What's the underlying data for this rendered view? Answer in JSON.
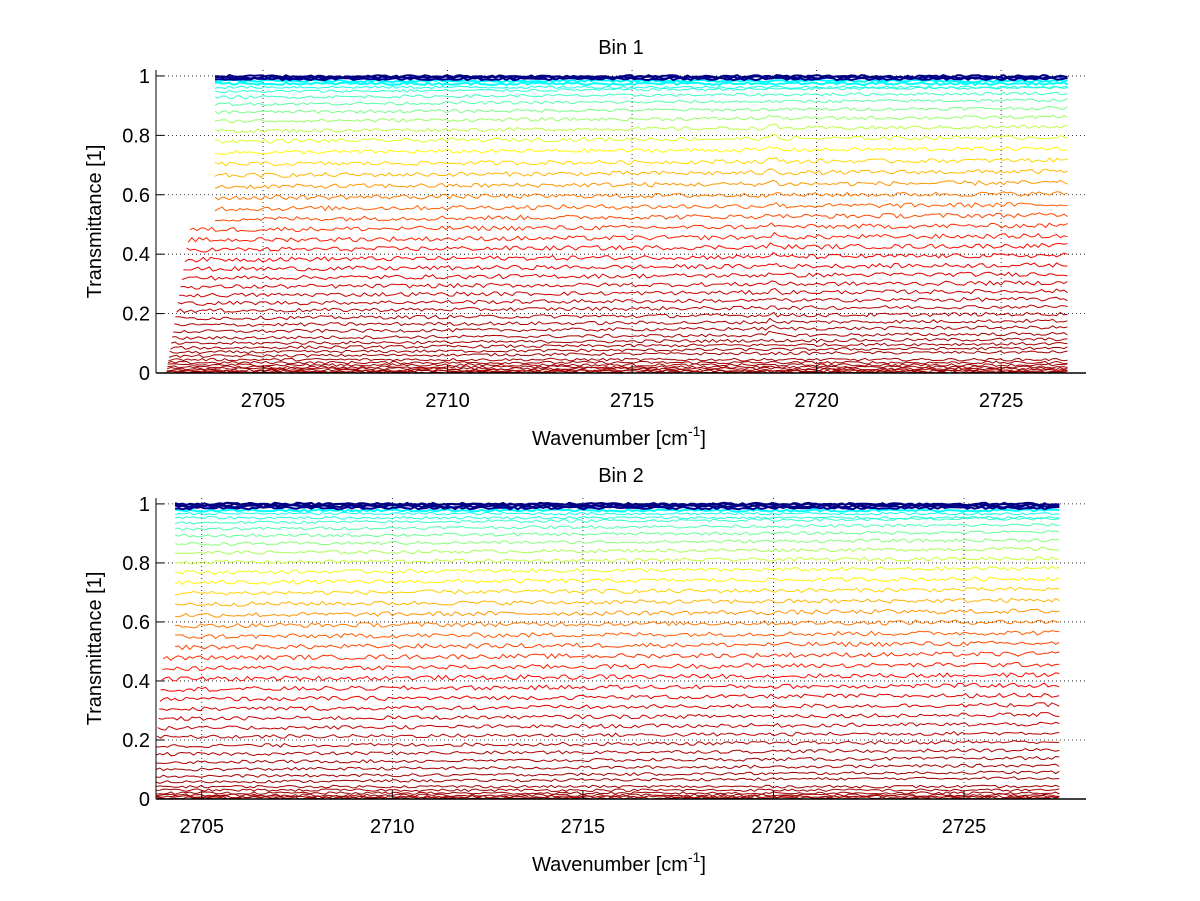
{
  "chart_data": [
    {
      "type": "line",
      "title": "Bin 1",
      "xlabel": "Wavenumber [cm",
      "xlabel_sup": "-1",
      "xlabel_end": "]",
      "ylabel": "Transmittance [1]",
      "xlim": [
        2702.1,
        2727.3
      ],
      "ylim": [
        0,
        1.02
      ],
      "xticks": [
        2705,
        2710,
        2715,
        2720,
        2725
      ],
      "xtick_labels": [
        "2705",
        "2710",
        "2715",
        "2720",
        "2725"
      ],
      "yticks": [
        0,
        0.2,
        0.4,
        0.6,
        0.8,
        1
      ],
      "ytick_labels": [
        "0",
        "0.2",
        "0.4",
        "0.6",
        "0.8",
        "1"
      ],
      "grid": true,
      "x_range": [
        2703.7,
        2726.8
      ],
      "colormap": "jet",
      "series_levels": [
        0.0,
        0.003,
        0.006,
        0.01,
        0.015,
        0.02,
        0.027,
        0.035,
        0.045,
        0.057,
        0.07,
        0.085,
        0.1,
        0.118,
        0.14,
        0.162,
        0.185,
        0.21,
        0.235,
        0.262,
        0.29,
        0.32,
        0.35,
        0.382,
        0.415,
        0.448,
        0.483,
        0.518,
        0.553,
        0.59,
        0.627,
        0.665,
        0.703,
        0.742,
        0.78,
        0.815,
        0.848,
        0.878,
        0.905,
        0.928,
        0.947,
        0.962,
        0.974,
        0.983,
        0.99,
        0.995,
        0.999
      ]
    },
    {
      "type": "line",
      "title": "Bin 2",
      "xlabel": "Wavenumber [cm",
      "xlabel_sup": "-1",
      "xlabel_end": "]",
      "ylabel": "Transmittance [1]",
      "xlim": [
        2703.8,
        2728.2
      ],
      "ylim": [
        0,
        1.02
      ],
      "xticks": [
        2705,
        2710,
        2715,
        2720,
        2725
      ],
      "xtick_labels": [
        "2705",
        "2710",
        "2715",
        "2720",
        "2725"
      ],
      "yticks": [
        0,
        0.2,
        0.4,
        0.6,
        0.8,
        1
      ],
      "ytick_labels": [
        "0",
        "0.2",
        "0.4",
        "0.6",
        "0.8",
        "1"
      ],
      "grid": true,
      "x_range": [
        2704.3,
        2727.5
      ],
      "colormap": "jet",
      "series_levels": [
        0.0,
        0.004,
        0.008,
        0.013,
        0.02,
        0.03,
        0.042,
        0.058,
        0.077,
        0.1,
        0.125,
        0.152,
        0.18,
        0.21,
        0.24,
        0.272,
        0.305,
        0.338,
        0.372,
        0.407,
        0.442,
        0.478,
        0.514,
        0.55,
        0.587,
        0.623,
        0.66,
        0.697,
        0.733,
        0.768,
        0.802,
        0.834,
        0.864,
        0.891,
        0.915,
        0.936,
        0.953,
        0.967,
        0.978,
        0.986,
        0.992,
        0.997,
        1.0
      ]
    }
  ]
}
